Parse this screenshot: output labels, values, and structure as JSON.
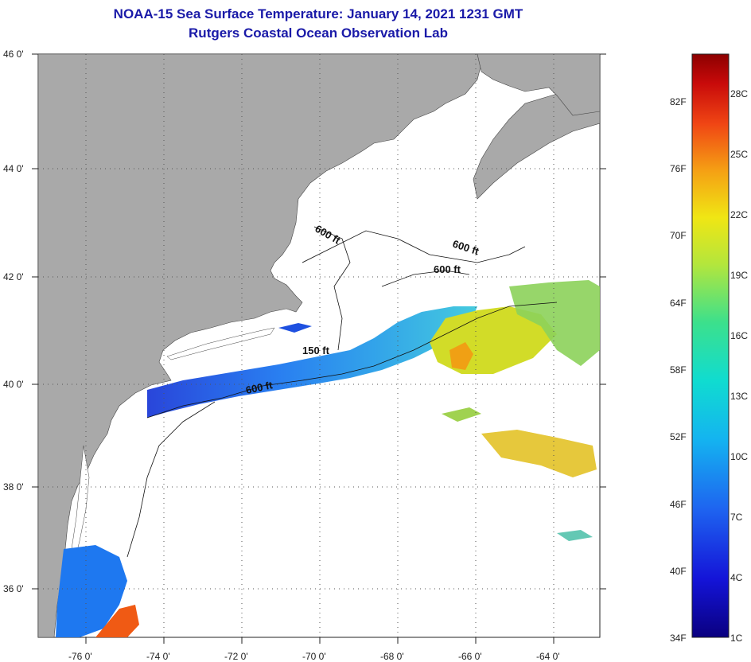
{
  "title": {
    "line1": "NOAA-15 Sea Surface Temperature:  January 14, 2021 1231 GMT",
    "line2": "Rutgers Coastal Ocean Observation Lab"
  },
  "lat_labels": [
    "46 0'",
    "44 0'",
    "42 0'",
    "40 0'",
    "38 0'",
    "36 0'"
  ],
  "lon_labels": [
    "-76 0'",
    "-74 0'",
    "-72 0'",
    "-70 0'",
    "-68 0'",
    "-66 0'",
    "-64 0'"
  ],
  "contour_labels": [
    "600 ft",
    "600 ft",
    "600 ft",
    "150 ft",
    "600 ft"
  ],
  "colorbar": {
    "fahrenheit": [
      "82F",
      "76F",
      "70F",
      "64F",
      "58F",
      "52F",
      "46F",
      "40F",
      "34F"
    ],
    "celsius": [
      "28C",
      "25C",
      "22C",
      "19C",
      "16C",
      "13C",
      "10C",
      "7C",
      "4C",
      "1C"
    ]
  },
  "colors": {
    "land": "#a9a9a9",
    "title": "#1a1aa8"
  }
}
